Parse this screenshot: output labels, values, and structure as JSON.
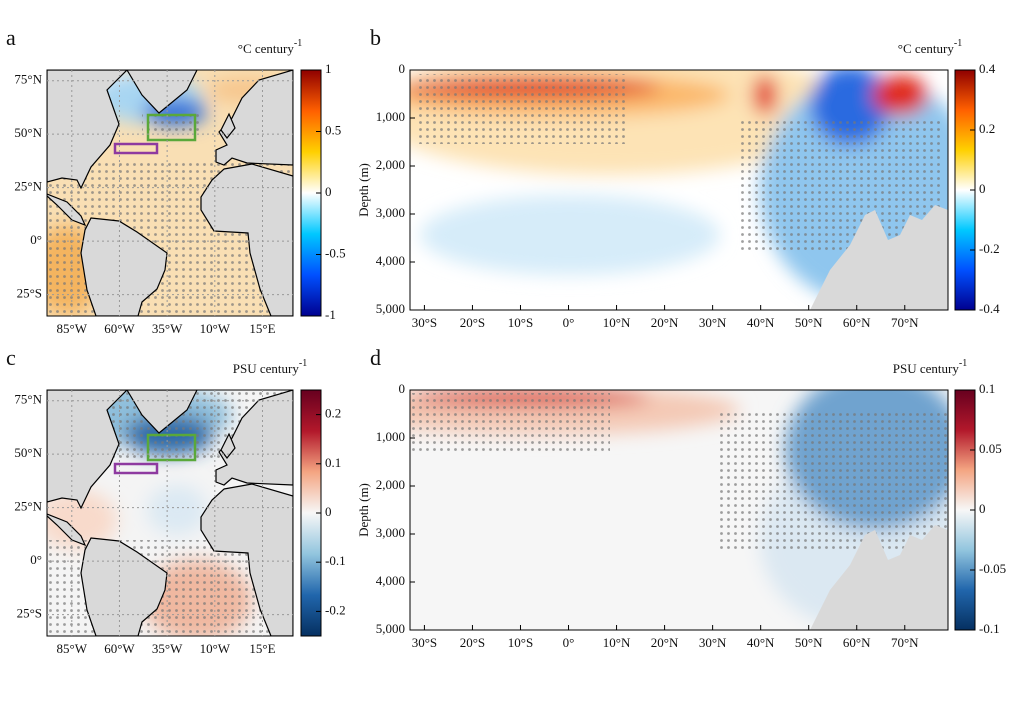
{
  "chart_data": [
    {
      "type": "map",
      "panel_label": "a",
      "colorbar_unit": "°C century",
      "colorbar_unit_exponent": "-1",
      "clim": [
        -1,
        1
      ],
      "cticks": [
        1,
        0.5,
        0,
        -0.5,
        -1
      ],
      "colormap": [
        "#00008f",
        "#0050ff",
        "#00c8ff",
        "#ffffff",
        "#ffd000",
        "#ff6000",
        "#8f0000"
      ],
      "xlim": [
        -98,
        31
      ],
      "ylim": [
        -35,
        80
      ],
      "grid": true,
      "xticks": [
        {
          "value": -85,
          "label": "85°W"
        },
        {
          "value": -60,
          "label": "60°W"
        },
        {
          "value": -35,
          "label": "35°W"
        },
        {
          "value": -10,
          "label": "10°W"
        },
        {
          "value": 15,
          "label": "15°E"
        }
      ],
      "yticks": [
        {
          "value": 75,
          "label": "75°N"
        },
        {
          "value": 50,
          "label": "50°N"
        },
        {
          "value": 25,
          "label": "25°N"
        },
        {
          "value": 0,
          "label": "0°"
        },
        {
          "value": -25,
          "label": "25°S"
        }
      ]
    },
    {
      "type": "section",
      "panel_label": "b",
      "colorbar_unit": "°C century",
      "colorbar_unit_exponent": "-1",
      "clim": [
        -0.4,
        0.4
      ],
      "cticks": [
        0.4,
        0.2,
        0,
        -0.2,
        -0.4
      ],
      "colormap": [
        "#00008f",
        "#0050ff",
        "#00c8ff",
        "#ffffff",
        "#ffd000",
        "#ff6000",
        "#8f0000"
      ],
      "ylabel": "Depth (m)",
      "xlim": [
        -33,
        79
      ],
      "ylim": [
        5000,
        0
      ],
      "grid": false,
      "xticks": [
        {
          "value": -30,
          "label": "30°S"
        },
        {
          "value": -20,
          "label": "20°S"
        },
        {
          "value": -10,
          "label": "10°S"
        },
        {
          "value": 0,
          "label": "0°"
        },
        {
          "value": 10,
          "label": "10°N"
        },
        {
          "value": 20,
          "label": "20°N"
        },
        {
          "value": 30,
          "label": "30°N"
        },
        {
          "value": 40,
          "label": "40°N"
        },
        {
          "value": 50,
          "label": "50°N"
        },
        {
          "value": 60,
          "label": "60°N"
        },
        {
          "value": 70,
          "label": "70°N"
        }
      ],
      "yticks": [
        0,
        {
          "value": 1000,
          "label": "1,000"
        },
        {
          "value": 2000,
          "label": "2,000"
        },
        {
          "value": 3000,
          "label": "3,000"
        },
        {
          "value": 4000,
          "label": "4,000"
        },
        {
          "value": 5000,
          "label": "5,000"
        }
      ]
    },
    {
      "type": "map",
      "panel_label": "c",
      "colorbar_unit": "PSU century",
      "colorbar_unit_exponent": "-1",
      "clim": [
        -0.25,
        0.25
      ],
      "cticks": [
        0.2,
        0.1,
        0,
        -0.1,
        -0.2
      ],
      "colormap": [
        "#053061",
        "#2166ac",
        "#92c5de",
        "#f7f7f7",
        "#f4a582",
        "#b2182b",
        "#67001f"
      ],
      "xlim": [
        -98,
        31
      ],
      "ylim": [
        -35,
        80
      ],
      "grid": true,
      "xticks": [
        {
          "value": -85,
          "label": "85°W"
        },
        {
          "value": -60,
          "label": "60°W"
        },
        {
          "value": -35,
          "label": "35°W"
        },
        {
          "value": -10,
          "label": "10°W"
        },
        {
          "value": 15,
          "label": "15°E"
        }
      ],
      "yticks": [
        {
          "value": 75,
          "label": "75°N"
        },
        {
          "value": 50,
          "label": "50°N"
        },
        {
          "value": 25,
          "label": "25°N"
        },
        {
          "value": 0,
          "label": "0°"
        },
        {
          "value": -25,
          "label": "25°S"
        }
      ]
    },
    {
      "type": "section",
      "panel_label": "d",
      "colorbar_unit": "PSU century",
      "colorbar_unit_exponent": "-1",
      "clim": [
        -0.1,
        0.1
      ],
      "cticks": [
        0.1,
        0.05,
        0,
        -0.05,
        -0.1
      ],
      "colormap": [
        "#053061",
        "#2166ac",
        "#92c5de",
        "#f7f7f7",
        "#f4a582",
        "#b2182b",
        "#67001f"
      ],
      "ylabel": "Depth (m)",
      "xlim": [
        -33,
        79
      ],
      "ylim": [
        5000,
        0
      ],
      "grid": false,
      "xticks": [
        {
          "value": -30,
          "label": "30°S"
        },
        {
          "value": -20,
          "label": "20°S"
        },
        {
          "value": -10,
          "label": "10°S"
        },
        {
          "value": 0,
          "label": "0°"
        },
        {
          "value": 10,
          "label": "10°N"
        },
        {
          "value": 20,
          "label": "20°N"
        },
        {
          "value": 30,
          "label": "30°N"
        },
        {
          "value": 40,
          "label": "40°N"
        },
        {
          "value": 50,
          "label": "50°N"
        },
        {
          "value": 60,
          "label": "60°N"
        },
        {
          "value": 70,
          "label": "70°N"
        }
      ],
      "yticks": [
        0,
        {
          "value": 1000,
          "label": "1,000"
        },
        {
          "value": 2000,
          "label": "2,000"
        },
        {
          "value": 3000,
          "label": "3,000"
        },
        {
          "value": 4000,
          "label": "4,000"
        },
        {
          "value": 5000,
          "label": "5,000"
        }
      ]
    }
  ]
}
